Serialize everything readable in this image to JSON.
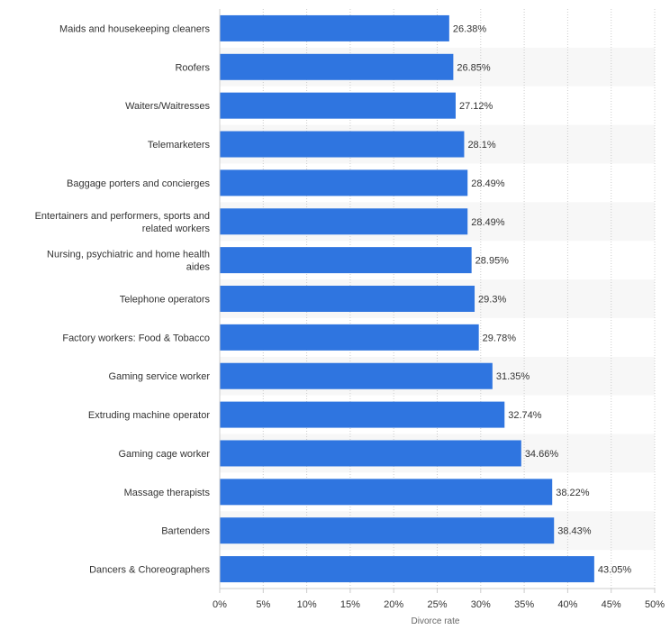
{
  "chart_data": {
    "type": "bar",
    "orientation": "horizontal",
    "categories": [
      "Maids and housekeeping cleaners",
      "Roofers",
      "Waiters/Waitresses",
      "Telemarketers",
      "Baggage porters and concierges",
      "Entertainers and performers, sports and related workers",
      "Nursing, psychiatric and home health aides",
      "Telephone operators",
      "Factory workers: Food & Tobacco",
      "Gaming service worker",
      "Extruding machine operator",
      "Gaming cage worker",
      "Massage therapists",
      "Bartenders",
      "Dancers & Choreographers"
    ],
    "category_lines": [
      [
        "Maids and housekeeping cleaners"
      ],
      [
        "Roofers"
      ],
      [
        "Waiters/Waitresses"
      ],
      [
        "Telemarketers"
      ],
      [
        "Baggage porters and concierges"
      ],
      [
        "Entertainers and performers, sports and",
        "related workers"
      ],
      [
        "Nursing, psychiatric and home health",
        "aides"
      ],
      [
        "Telephone operators"
      ],
      [
        "Factory workers: Food & Tobacco"
      ],
      [
        "Gaming service worker"
      ],
      [
        "Extruding machine operator"
      ],
      [
        "Gaming cage worker"
      ],
      [
        "Massage therapists"
      ],
      [
        "Bartenders"
      ],
      [
        "Dancers & Choreographers"
      ]
    ],
    "values": [
      26.38,
      26.85,
      27.12,
      28.1,
      28.49,
      28.49,
      28.95,
      29.3,
      29.78,
      31.35,
      32.74,
      34.66,
      38.22,
      38.43,
      43.05
    ],
    "value_labels": [
      "26.38%",
      "26.85%",
      "27.12%",
      "28.1%",
      "28.49%",
      "28.49%",
      "28.95%",
      "29.3%",
      "29.78%",
      "31.35%",
      "32.74%",
      "34.66%",
      "38.22%",
      "38.43%",
      "43.05%"
    ],
    "xlim": [
      0,
      50
    ],
    "ticks": [
      0,
      5,
      10,
      15,
      20,
      25,
      30,
      35,
      40,
      45,
      50
    ],
    "tick_labels": [
      "0%",
      "5%",
      "10%",
      "15%",
      "20%",
      "25%",
      "30%",
      "35%",
      "40%",
      "45%",
      "50%"
    ],
    "xlabel": "Divorce rate",
    "ylabel": "",
    "grid": true,
    "bar_color": "#2f75e0",
    "band_color": "#f7f7f7"
  }
}
